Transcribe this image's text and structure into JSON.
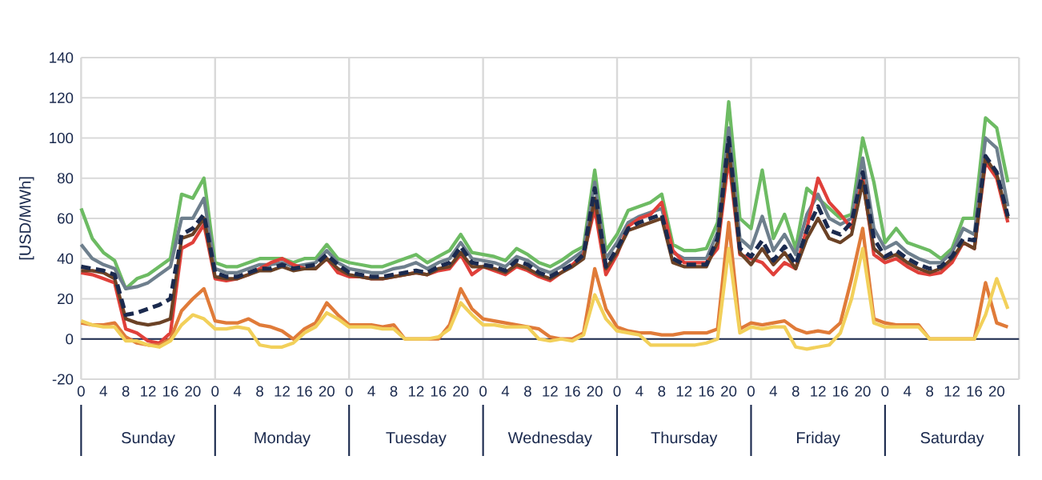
{
  "chart_data": {
    "type": "line",
    "ylabel": "[USD/MWh]",
    "categories": [
      "0",
      null,
      "4",
      null,
      "8",
      null,
      "12",
      null,
      "16",
      null,
      "20",
      null,
      "0",
      null,
      "4",
      null,
      "8",
      null,
      "12",
      null,
      "16",
      null,
      "20",
      null,
      "0",
      null,
      "4",
      null,
      "8",
      null,
      "12",
      null,
      "16",
      null,
      "20",
      null,
      "0",
      null,
      "4",
      null,
      "8",
      null,
      "12",
      null,
      "16",
      null,
      "20",
      null,
      "0",
      null,
      "4",
      null,
      "8",
      null,
      "12",
      null,
      "16",
      null,
      "20",
      null,
      "0",
      null,
      "4",
      null,
      "8",
      null,
      "12",
      null,
      "16",
      null,
      "20",
      null,
      "0",
      null,
      "4",
      null,
      "8",
      null,
      "12",
      null,
      "16",
      null,
      "20",
      null
    ],
    "ylim": [
      -20,
      140
    ],
    "yticks": [
      -20,
      0,
      20,
      40,
      60,
      80,
      100,
      120,
      140
    ],
    "grid": "y",
    "marker": "none",
    "annotations": [
      "Sunday",
      "Monday",
      "Tuesday",
      "Wednesday",
      "Thursday",
      "Friday",
      "Saturday"
    ],
    "series": [
      {
        "color": "#6dbb63",
        "line_style": "solid",
        "values": [
          65,
          50,
          43,
          39,
          25,
          30,
          32,
          36,
          40,
          72,
          70,
          80,
          38,
          36,
          36,
          38,
          40,
          40,
          40,
          38,
          40,
          40,
          47,
          40,
          38,
          37,
          36,
          36,
          38,
          40,
          42,
          38,
          41,
          44,
          52,
          43,
          42,
          41,
          39,
          45,
          42,
          38,
          36,
          39,
          43,
          46,
          84,
          44,
          52,
          64,
          66,
          68,
          72,
          47,
          44,
          44,
          45,
          58,
          118,
          60,
          55,
          84,
          50,
          62,
          45,
          75,
          70,
          65,
          60,
          62,
          100,
          78,
          48,
          55,
          48,
          46,
          44,
          40,
          45,
          60,
          60,
          110,
          105,
          78
        ]
      },
      {
        "color": "#6e7f8d",
        "line_style": "solid",
        "values": [
          47,
          40,
          37,
          35,
          25,
          26,
          28,
          32,
          36,
          60,
          60,
          70,
          35,
          33,
          33,
          35,
          37,
          37,
          38,
          36,
          37,
          38,
          44,
          38,
          35,
          34,
          33,
          33,
          35,
          36,
          38,
          35,
          38,
          40,
          48,
          40,
          39,
          38,
          36,
          41,
          39,
          35,
          33,
          36,
          40,
          44,
          78,
          40,
          48,
          58,
          61,
          63,
          65,
          43,
          40,
          40,
          40,
          53,
          105,
          50,
          45,
          61,
          44,
          52,
          42,
          62,
          72,
          60,
          57,
          60,
          90,
          55,
          45,
          48,
          43,
          40,
          38,
          38,
          43,
          55,
          52,
          100,
          95,
          66
        ]
      },
      {
        "color": "#e0403a",
        "line_style": "solid",
        "values": [
          33,
          32,
          30,
          28,
          5,
          3,
          -1,
          -2,
          3,
          45,
          48,
          57,
          30,
          29,
          30,
          32,
          35,
          38,
          40,
          37,
          35,
          35,
          40,
          33,
          31,
          31,
          30,
          30,
          31,
          32,
          33,
          32,
          34,
          35,
          42,
          32,
          36,
          34,
          32,
          36,
          34,
          31,
          29,
          33,
          37,
          42,
          65,
          32,
          42,
          56,
          60,
          62,
          68,
          44,
          38,
          38,
          38,
          45,
          90,
          42,
          40,
          38,
          32,
          38,
          35,
          55,
          80,
          68,
          62,
          55,
          80,
          42,
          38,
          40,
          36,
          33,
          32,
          33,
          38,
          48,
          45,
          88,
          80,
          58
        ]
      },
      {
        "color": "#6b4226",
        "line_style": "solid",
        "values": [
          34,
          34,
          33,
          30,
          10,
          8,
          7,
          8,
          10,
          50,
          52,
          60,
          31,
          30,
          30,
          32,
          34,
          34,
          36,
          34,
          35,
          35,
          40,
          35,
          32,
          31,
          30,
          30,
          31,
          32,
          33,
          32,
          35,
          36,
          43,
          36,
          36,
          35,
          33,
          37,
          35,
          32,
          30,
          33,
          36,
          40,
          70,
          35,
          43,
          54,
          56,
          58,
          60,
          38,
          36,
          36,
          36,
          48,
          95,
          43,
          37,
          45,
          37,
          43,
          35,
          50,
          60,
          50,
          48,
          52,
          78,
          45,
          40,
          42,
          38,
          35,
          33,
          35,
          40,
          48,
          45,
          90,
          82,
          60
        ]
      },
      {
        "color": "#e07b39",
        "line_style": "solid",
        "values": [
          8,
          7,
          7,
          8,
          1,
          -2,
          -3,
          -3,
          0,
          14,
          20,
          25,
          9,
          8,
          8,
          10,
          7,
          6,
          4,
          0,
          5,
          8,
          18,
          12,
          7,
          7,
          7,
          6,
          7,
          0,
          0,
          0,
          0,
          7,
          25,
          15,
          10,
          9,
          8,
          7,
          6,
          5,
          1,
          0,
          0,
          3,
          35,
          15,
          6,
          4,
          3,
          3,
          2,
          2,
          3,
          3,
          3,
          5,
          58,
          5,
          8,
          7,
          8,
          9,
          5,
          3,
          4,
          3,
          8,
          30,
          55,
          10,
          8,
          7,
          7,
          7,
          0,
          0,
          0,
          0,
          0,
          28,
          8,
          6
        ]
      },
      {
        "color": "#f2d05a",
        "line_style": "solid",
        "values": [
          9,
          7,
          6,
          6,
          -1,
          -1,
          -3,
          -4,
          -1,
          7,
          12,
          10,
          5,
          5,
          6,
          5,
          -3,
          -4,
          -4,
          -2,
          3,
          6,
          13,
          10,
          6,
          6,
          6,
          5,
          5,
          0,
          0,
          0,
          1,
          5,
          18,
          12,
          7,
          7,
          6,
          6,
          6,
          0,
          -1,
          0,
          -1,
          2,
          22,
          10,
          4,
          3,
          2,
          -3,
          -3,
          -3,
          -3,
          -3,
          -2,
          0,
          45,
          3,
          6,
          5,
          6,
          6,
          -4,
          -5,
          -4,
          -3,
          3,
          20,
          45,
          8,
          6,
          6,
          6,
          6,
          0,
          0,
          0,
          0,
          0,
          12,
          30,
          15
        ]
      },
      {
        "color": "#1b2a4e",
        "line_style": "dashed",
        "values": [
          36,
          35,
          34,
          32,
          12,
          13,
          15,
          17,
          20,
          52,
          55,
          62,
          33,
          31,
          31,
          33,
          35,
          35,
          37,
          35,
          36,
          37,
          42,
          37,
          33,
          32,
          31,
          31,
          32,
          33,
          34,
          33,
          36,
          38,
          46,
          38,
          37,
          36,
          34,
          39,
          37,
          33,
          31,
          34,
          37,
          42,
          75,
          36,
          45,
          55,
          58,
          60,
          62,
          40,
          37,
          37,
          37,
          50,
          100,
          45,
          41,
          49,
          39,
          46,
          37,
          54,
          66,
          54,
          52,
          58,
          83,
          50,
          41,
          44,
          40,
          37,
          35,
          36,
          41,
          50,
          49,
          91,
          83,
          61
        ]
      }
    ]
  }
}
